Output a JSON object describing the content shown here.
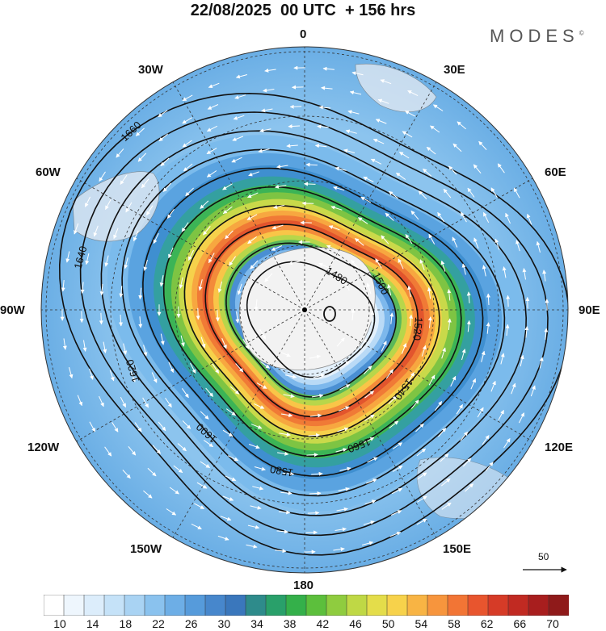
{
  "title": "22/08/2025  00 UTC  + 156 hrs",
  "brand": "MODES",
  "brand_mark": "©",
  "longitude_labels": [
    "0",
    "30E",
    "60E",
    "90E",
    "120E",
    "150E",
    "180",
    "150W",
    "120W",
    "90W",
    "60W",
    "30W"
  ],
  "contours": [
    {
      "value": 1480,
      "label": "1480"
    },
    {
      "value": 1500,
      "label": "1500"
    },
    {
      "value": 1520,
      "label": "1520"
    },
    {
      "value": 1540,
      "label": "1540"
    },
    {
      "value": 1560,
      "label": "1560"
    },
    {
      "value": 1580,
      "label": "1580"
    },
    {
      "value": 1600,
      "label": "1600"
    },
    {
      "value": 1620,
      "label": "1620"
    },
    {
      "value": 1640,
      "label": "1640"
    },
    {
      "value": 1660,
      "label": "1660"
    }
  ],
  "reference_vector": {
    "label": "50"
  },
  "colorbar": {
    "tick_labels": [
      "10",
      "14",
      "18",
      "22",
      "26",
      "30",
      "34",
      "38",
      "42",
      "46",
      "50",
      "54",
      "58",
      "62",
      "66",
      "70"
    ],
    "colors": [
      "#ffffff",
      "#eef6fd",
      "#dcedfb",
      "#c5e2f8",
      "#a9d3f3",
      "#8ac2ee",
      "#6daee6",
      "#569bdb",
      "#4787cc",
      "#3a77bc",
      "#2e8b8b",
      "#29a06a",
      "#34b04a",
      "#5cbf3c",
      "#8fcc3f",
      "#bfd845",
      "#e4dd4a",
      "#f7d24b",
      "#f8b444",
      "#f7953d",
      "#f27535",
      "#e8552e",
      "#d63b27",
      "#c12a22",
      "#a81e1e",
      "#8f1a1a"
    ]
  }
}
